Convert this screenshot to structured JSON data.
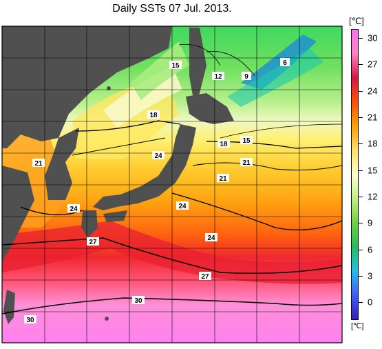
{
  "title": "Daily SSTs 07 Jul. 2013.",
  "colorbar": {
    "unit": "[℃]",
    "unit_bottom": "[℃]",
    "ticks": [
      "30",
      "27",
      "24",
      "21",
      "18",
      "15",
      "12",
      "9",
      "6",
      "3",
      "0"
    ],
    "range": [
      -2,
      31
    ],
    "colors": [
      "#3a1ac0",
      "#3d5cff",
      "#20c0e8",
      "#20c060",
      "#70d040",
      "#c0f080",
      "#ffffd0",
      "#ffe060",
      "#ffa000",
      "#ff5000",
      "#e01040",
      "#ff80c0",
      "#ff70f0"
    ]
  },
  "map": {
    "land_color": "#505050",
    "contour_labels": [
      "6",
      "9",
      "12",
      "15",
      "15",
      "18",
      "18",
      "21",
      "21",
      "21",
      "24",
      "24",
      "24",
      "24",
      "27",
      "27",
      "30",
      "30"
    ]
  }
}
